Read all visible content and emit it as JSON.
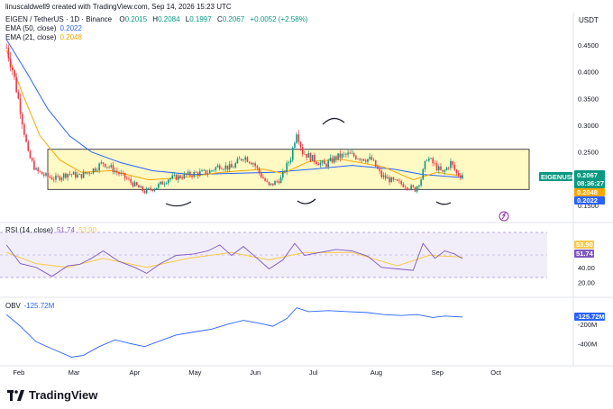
{
  "header": {
    "credit": "linuscaldwell9 created with TradingView.com, Sep 14, 2026 15:23 UTC",
    "symbol": "EIGEN / TetherUS · 1D · Binance",
    "o_label": "O",
    "o": "0.2015",
    "h_label": "H",
    "h": "0.2084",
    "l_label": "L",
    "l": "0.1997",
    "c_label": "C",
    "c": "0.2067",
    "chg": "+0.0052 (+2.58%)",
    "ema50_label": "EMA (50, close)",
    "ema50": "0.2022",
    "ema21_label": "EMA (21, close)",
    "ema21": "0.2048",
    "currency": "USDT"
  },
  "colors": {
    "up": "#089981",
    "down": "#f23645",
    "ema50": "#2962ff",
    "ema21": "#f7a600",
    "range_fill": "#fff9c4",
    "rsi": "#7e57c2",
    "rsi_ma": "#f7c948",
    "obv": "#2962ff",
    "text": "#131722"
  },
  "badges": {
    "symbol": "EIGENUSDT",
    "price": "0.2067",
    "countdown": "08:36:27",
    "ema21": "0.2048",
    "ema50": "0.2022",
    "rsi_ma": "53.90",
    "rsi": "51.74",
    "obv": "-125.72M"
  },
  "rsi_header": {
    "label": "RSI (14, close)",
    "v1": "51.74",
    "v2": "53.90"
  },
  "obv_header": {
    "label": "OBV",
    "v": "-125.72M"
  },
  "brand": {
    "name": "TradingView",
    "logo_icon": "tradingview-logo-icon"
  },
  "chart_data": {
    "type": "candlestick",
    "price_axis_ticks": [
      "0.4500",
      "0.4000",
      "0.3500",
      "0.3000",
      "0.2500",
      "0.1500"
    ],
    "price_axis_range": [
      0.13,
      0.47
    ],
    "rsi_axis_ticks": [
      "40.00",
      "20.00"
    ],
    "rsi_range": [
      0,
      100
    ],
    "obv_axis_ticks": [
      "-200M",
      "-400M"
    ],
    "obv_axis_range_millions": [
      -600,
      50
    ],
    "x_ticks": [
      "Feb",
      "Mar",
      "Apr",
      "May",
      "Jun",
      "Jul",
      "Aug",
      "Sep",
      "Oct"
    ],
    "range_box": {
      "low": 0.18,
      "high": 0.255
    },
    "price_close_path": [
      [
        "Jan 26",
        0.445
      ],
      [
        "Jan 29",
        0.405
      ],
      [
        "Feb 02",
        0.33
      ],
      [
        "Feb 06",
        0.245
      ],
      [
        "Feb 10",
        0.215
      ],
      [
        "Feb 15",
        0.205
      ],
      [
        "Feb 20",
        0.2
      ],
      [
        "Feb 26",
        0.21
      ],
      [
        "Mar 04",
        0.205
      ],
      [
        "Mar 10",
        0.215
      ],
      [
        "Mar 16",
        0.23
      ],
      [
        "Mar 20",
        0.22
      ],
      [
        "Mar 26",
        0.205
      ],
      [
        "Apr 01",
        0.188
      ],
      [
        "Apr 06",
        0.176
      ],
      [
        "Apr 12",
        0.185
      ],
      [
        "Apr 18",
        0.2
      ],
      [
        "Apr 25",
        0.205
      ],
      [
        "May 02",
        0.21
      ],
      [
        "May 08",
        0.212
      ],
      [
        "May 14",
        0.225
      ],
      [
        "May 20",
        0.22
      ],
      [
        "May 26",
        0.242
      ],
      [
        "May 31",
        0.23
      ],
      [
        "Jun 04",
        0.206
      ],
      [
        "Jun 08",
        0.186
      ],
      [
        "Jun 14",
        0.2
      ],
      [
        "Jun 19",
        0.24
      ],
      [
        "Jun 22",
        0.29
      ],
      [
        "Jun 25",
        0.25
      ],
      [
        "Jul 01",
        0.235
      ],
      [
        "Jul 06",
        0.225
      ],
      [
        "Jul 12",
        0.24
      ],
      [
        "Jul 18",
        0.245
      ],
      [
        "Jul 24",
        0.24
      ],
      [
        "Jul 30",
        0.235
      ],
      [
        "Aug 04",
        0.205
      ],
      [
        "Aug 10",
        0.195
      ],
      [
        "Aug 16",
        0.188
      ],
      [
        "Aug 21",
        0.18
      ],
      [
        "Aug 24",
        0.2
      ],
      [
        "Aug 27",
        0.24
      ],
      [
        "Aug 31",
        0.225
      ],
      [
        "Sep 04",
        0.21
      ],
      [
        "Sep 08",
        0.23
      ],
      [
        "Sep 11",
        0.21
      ],
      [
        "Sep 14",
        0.2067
      ]
    ],
    "ema50_path": [
      [
        "Jan 26",
        0.46
      ],
      [
        "Feb 05",
        0.4
      ],
      [
        "Feb 16",
        0.33
      ],
      [
        "Feb 27",
        0.28
      ],
      [
        "Mar 10",
        0.25
      ],
      [
        "Mar 25",
        0.23
      ],
      [
        "Apr 10",
        0.215
      ],
      [
        "Apr 30",
        0.208
      ],
      [
        "May 20",
        0.21
      ],
      [
        "Jun 10",
        0.212
      ],
      [
        "Jun 30",
        0.218
      ],
      [
        "Jul 20",
        0.225
      ],
      [
        "Aug 10",
        0.218
      ],
      [
        "Aug 25",
        0.208
      ],
      [
        "Sep 14",
        0.2022
      ]
    ],
    "ema21_path": [
      [
        "Jan 26",
        0.44
      ],
      [
        "Feb 03",
        0.36
      ],
      [
        "Feb 12",
        0.28
      ],
      [
        "Feb 22",
        0.235
      ],
      [
        "Mar 05",
        0.212
      ],
      [
        "Mar 20",
        0.215
      ],
      [
        "Apr 08",
        0.198
      ],
      [
        "Apr 25",
        0.202
      ],
      [
        "May 15",
        0.212
      ],
      [
        "Jun 05",
        0.218
      ],
      [
        "Jun 15",
        0.21
      ],
      [
        "Jun 28",
        0.232
      ],
      [
        "Jul 15",
        0.236
      ],
      [
        "Aug 05",
        0.222
      ],
      [
        "Aug 20",
        0.198
      ],
      [
        "Sep 01",
        0.212
      ],
      [
        "Sep 14",
        0.2048
      ]
    ],
    "rsi_path": [
      [
        "Jan 26",
        70
      ],
      [
        "Feb 02",
        45
      ],
      [
        "Feb 10",
        40
      ],
      [
        "Feb 18",
        28
      ],
      [
        "Feb 26",
        42
      ],
      [
        "Mar 04",
        44
      ],
      [
        "Mar 10",
        52
      ],
      [
        "Mar 16",
        62
      ],
      [
        "Mar 24",
        48
      ],
      [
        "Apr 01",
        40
      ],
      [
        "Apr 07",
        32
      ],
      [
        "Apr 14",
        45
      ],
      [
        "Apr 22",
        56
      ],
      [
        "May 01",
        58
      ],
      [
        "May 08",
        62
      ],
      [
        "May 14",
        70
      ],
      [
        "May 20",
        56
      ],
      [
        "May 26",
        68
      ],
      [
        "Jun 02",
        52
      ],
      [
        "Jun 08",
        38
      ],
      [
        "Jun 15",
        50
      ],
      [
        "Jun 21",
        72
      ],
      [
        "Jun 26",
        56
      ],
      [
        "Jul 04",
        60
      ],
      [
        "Jul 12",
        64
      ],
      [
        "Jul 20",
        62
      ],
      [
        "Jul 28",
        55
      ],
      [
        "Aug 04",
        40
      ],
      [
        "Aug 12",
        38
      ],
      [
        "Aug 20",
        36
      ],
      [
        "Aug 25",
        72
      ],
      [
        "Aug 31",
        52
      ],
      [
        "Sep 05",
        62
      ],
      [
        "Sep 10",
        58
      ],
      [
        "Sep 14",
        51.74
      ]
    ],
    "rsi_ma_path": [
      [
        "Jan 26",
        60
      ],
      [
        "Feb 10",
        45
      ],
      [
        "Feb 26",
        40
      ],
      [
        "Mar 16",
        52
      ],
      [
        "Apr 07",
        40
      ],
      [
        "Apr 28",
        52
      ],
      [
        "May 20",
        60
      ],
      [
        "Jun 08",
        50
      ],
      [
        "Jun 26",
        60
      ],
      [
        "Jul 20",
        60
      ],
      [
        "Aug 12",
        42
      ],
      [
        "Aug 28",
        56
      ],
      [
        "Sep 14",
        53.9
      ]
    ],
    "obv_path_millions": [
      [
        "Jan 26",
        -100
      ],
      [
        "Feb 02",
        -220
      ],
      [
        "Feb 10",
        -380
      ],
      [
        "Feb 20",
        -470
      ],
      [
        "Feb 28",
        -540
      ],
      [
        "Mar 06",
        -520
      ],
      [
        "Mar 14",
        -430
      ],
      [
        "Mar 22",
        -360
      ],
      [
        "Mar 30",
        -400
      ],
      [
        "Apr 06",
        -430
      ],
      [
        "Apr 14",
        -370
      ],
      [
        "Apr 22",
        -310
      ],
      [
        "May 01",
        -280
      ],
      [
        "May 10",
        -250
      ],
      [
        "May 18",
        -200
      ],
      [
        "May 26",
        -160
      ],
      [
        "Jun 03",
        -190
      ],
      [
        "Jun 10",
        -220
      ],
      [
        "Jun 17",
        -140
      ],
      [
        "Jun 22",
        -30
      ],
      [
        "Jun 28",
        -70
      ],
      [
        "Jul 08",
        -60
      ],
      [
        "Jul 18",
        -70
      ],
      [
        "Jul 28",
        -80
      ],
      [
        "Aug 05",
        -100
      ],
      [
        "Aug 14",
        -110
      ],
      [
        "Aug 22",
        -100
      ],
      [
        "Aug 30",
        -130
      ],
      [
        "Sep 05",
        -115
      ],
      [
        "Sep 14",
        -125.72
      ]
    ]
  }
}
